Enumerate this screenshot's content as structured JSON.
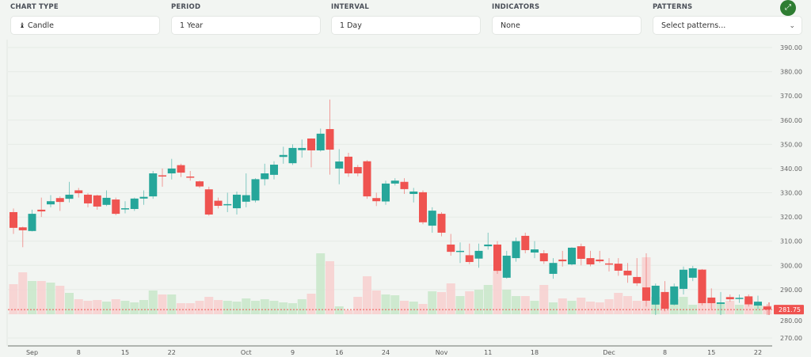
{
  "controls": [
    {
      "label": "CHART TYPE",
      "value": "Candle",
      "icon": "candle-icon"
    },
    {
      "label": "PERIOD",
      "value": "1 Year"
    },
    {
      "label": "INTERVAL",
      "value": "1 Day"
    },
    {
      "label": "INDICATORS",
      "value": "None"
    },
    {
      "label": "PATTERNS",
      "value": "Select patterns...",
      "icon": "chevron-down-icon"
    }
  ],
  "expand_icon": "expand-icon",
  "colors": {
    "up": "#26a69a",
    "down": "#ef5350",
    "up_volume": "#c8e6c9",
    "down_volume": "#f8cfcf",
    "accent": "#2e7d32"
  },
  "chart_data": {
    "type": "candlestick",
    "ylim": [
      270,
      390
    ],
    "yticks": [
      "390.00",
      "380.00",
      "370.00",
      "360.00",
      "350.00",
      "340.00",
      "330.00",
      "320.00",
      "310.00",
      "300.00",
      "290.00",
      "280.00",
      "270.00"
    ],
    "last_price": "281.75",
    "xticks": [
      {
        "i": 2,
        "label": "Sep"
      },
      {
        "i": 7,
        "label": "8"
      },
      {
        "i": 12,
        "label": "15"
      },
      {
        "i": 17,
        "label": "22"
      },
      {
        "i": 25,
        "label": "Oct"
      },
      {
        "i": 30,
        "label": "9"
      },
      {
        "i": 35,
        "label": "16"
      },
      {
        "i": 40,
        "label": "24"
      },
      {
        "i": 46,
        "label": "Nov"
      },
      {
        "i": 51,
        "label": "11"
      },
      {
        "i": 56,
        "label": "18"
      },
      {
        "i": 64,
        "label": "Dec"
      },
      {
        "i": 70,
        "label": "8"
      },
      {
        "i": 75,
        "label": "15"
      },
      {
        "i": 80,
        "label": "22"
      }
    ],
    "ohlc": [
      [
        322,
        323.5,
        313,
        315.5
      ],
      [
        315.7,
        316,
        307.5,
        314.5
      ],
      [
        314.2,
        323,
        314,
        321.3
      ],
      [
        323,
        328,
        320,
        322.3
      ],
      [
        325.2,
        329,
        324,
        326.5
      ],
      [
        327.8,
        328.5,
        322.5,
        326.2
      ],
      [
        327.5,
        334.5,
        326,
        329.2
      ],
      [
        331,
        332,
        328,
        329.8
      ],
      [
        329.2,
        329.8,
        324,
        325.6
      ],
      [
        328.9,
        329.2,
        323,
        324.3
      ],
      [
        325,
        331,
        324.5,
        327.9
      ],
      [
        327.2,
        328,
        320.7,
        321.3
      ],
      [
        323.2,
        326.5,
        321.5,
        323.6
      ],
      [
        323.3,
        328,
        322.5,
        327.6
      ],
      [
        327.6,
        331,
        325,
        328.3
      ],
      [
        328.5,
        339,
        327.5,
        338
      ],
      [
        337.2,
        340,
        332.5,
        336.8
      ],
      [
        338,
        344,
        335.5,
        340
      ],
      [
        341.4,
        342,
        336.5,
        338.3
      ],
      [
        336.7,
        339,
        335,
        336.3
      ],
      [
        334.7,
        335,
        332,
        332.6
      ],
      [
        331.4,
        332.5,
        320.5,
        321
      ],
      [
        326.7,
        328,
        323.5,
        324.6
      ],
      [
        325,
        330,
        322,
        325.3
      ],
      [
        323.6,
        330.5,
        321,
        329.2
      ],
      [
        326.3,
        338,
        324,
        329
      ],
      [
        326.8,
        336,
        326,
        335.6
      ],
      [
        335.6,
        342,
        333,
        338
      ],
      [
        337.4,
        343,
        335.5,
        341.6
      ],
      [
        344.8,
        349,
        342,
        345.6
      ],
      [
        342.2,
        350,
        341.5,
        348.5
      ],
      [
        347.6,
        352,
        344.5,
        348.5
      ],
      [
        352.4,
        352.5,
        340.5,
        347.5
      ],
      [
        347.5,
        356.5,
        347,
        354.4
      ],
      [
        356.3,
        368.5,
        337.5,
        347.8
      ],
      [
        340,
        348,
        333.5,
        342.9
      ],
      [
        344.9,
        346.5,
        336.6,
        338
      ],
      [
        340.6,
        341.5,
        336.8,
        338
      ],
      [
        343,
        343.5,
        327.5,
        328.5
      ],
      [
        327.8,
        330,
        324.5,
        326.5
      ],
      [
        326.4,
        335,
        325,
        333.8
      ],
      [
        333.8,
        336,
        333,
        335
      ],
      [
        334.5,
        336,
        329.5,
        331.5
      ],
      [
        329.5,
        332,
        326,
        330.5
      ],
      [
        330.2,
        331,
        317,
        317.8
      ],
      [
        316.4,
        324,
        313.5,
        322.6
      ],
      [
        321.3,
        322,
        312,
        313.5
      ],
      [
        308.6,
        313,
        304,
        305.6
      ],
      [
        305.8,
        309.5,
        301,
        306
      ],
      [
        304.2,
        309,
        300.5,
        301.4
      ],
      [
        302.8,
        309,
        299,
        306
      ],
      [
        307.9,
        313.5,
        306.5,
        308.6
      ],
      [
        308.6,
        310,
        296.5,
        297.7
      ],
      [
        294.9,
        306,
        294.5,
        304
      ],
      [
        303,
        311.5,
        301.5,
        310
      ],
      [
        312.2,
        313.5,
        305,
        306.3
      ],
      [
        305.3,
        310,
        303,
        306.6
      ],
      [
        305,
        306.3,
        300.6,
        301.7
      ],
      [
        296.5,
        303,
        294.5,
        301
      ],
      [
        302.4,
        306,
        299.5,
        301.7
      ],
      [
        300.4,
        307.5,
        300,
        307.3
      ],
      [
        307.9,
        309,
        300,
        302.7
      ],
      [
        303,
        306,
        299.6,
        300.4
      ],
      [
        302.4,
        306,
        301,
        301.7
      ],
      [
        300.8,
        303,
        297.5,
        300.6
      ],
      [
        300.7,
        303,
        295.7,
        297.8
      ],
      [
        297.8,
        301,
        292.8,
        295.9
      ],
      [
        295.2,
        303,
        291.5,
        292.6
      ],
      [
        290.9,
        305,
        283,
        285.4
      ],
      [
        283.8,
        292.5,
        279.5,
        291.6
      ],
      [
        289,
        293.5,
        281,
        282.1
      ],
      [
        283.8,
        292.5,
        283.5,
        291.3
      ],
      [
        290.3,
        299.5,
        288,
        298.2
      ],
      [
        294.9,
        299.8,
        293.5,
        298.8
      ],
      [
        298.2,
        298.5,
        283.5,
        284.4
      ],
      [
        286.7,
        290.5,
        282,
        284.4
      ],
      [
        284.1,
        289,
        279.5,
        284.7
      ],
      [
        286.9,
        288,
        285,
        286
      ],
      [
        286.3,
        288,
        284.5,
        286.6
      ],
      [
        287.2,
        288,
        283,
        283.9
      ],
      [
        283.4,
        287.5,
        282,
        285
      ],
      [
        283,
        284,
        279.5,
        281.75
      ]
    ],
    "volume": [
      38,
      53,
      42,
      42,
      40,
      36,
      27,
      19,
      17,
      18,
      16,
      19,
      17,
      15,
      18,
      30,
      25,
      25,
      14,
      14,
      17,
      22,
      18,
      17,
      16,
      20,
      17,
      19,
      17,
      15,
      14,
      19,
      26,
      77,
      67,
      10,
      5,
      22,
      48,
      30,
      25,
      24,
      17,
      16,
      13,
      29,
      28,
      39,
      23,
      29,
      31,
      37,
      54,
      31,
      23,
      23,
      17,
      37,
      15,
      20,
      17,
      21,
      16,
      15,
      19,
      27,
      23,
      17,
      72,
      22,
      14,
      19,
      22,
      12,
      57,
      17,
      15,
      17,
      12,
      19,
      12,
      11
    ]
  }
}
